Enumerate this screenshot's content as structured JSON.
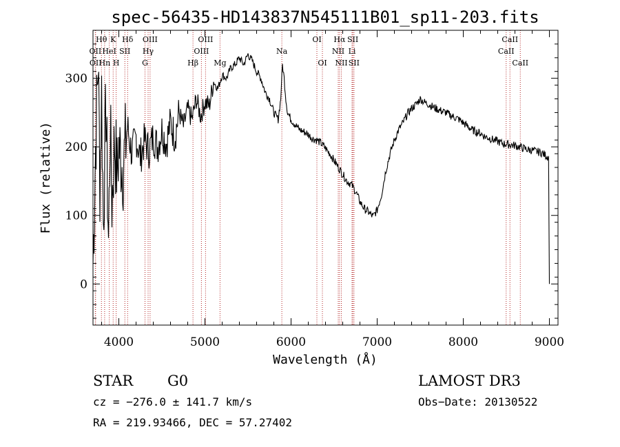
{
  "chart_data": {
    "type": "line",
    "title": "spec-56435-HD143837N545111B01_sp11-203.fits",
    "xlabel": "Wavelength (Å)",
    "ylabel": "Flux (relative)",
    "xlim": [
      3700,
      9100
    ],
    "ylim": [
      -60,
      370
    ],
    "xticks": [
      4000,
      5000,
      6000,
      7000,
      8000,
      9000
    ],
    "yticks": [
      0,
      100,
      200,
      300
    ],
    "series": [
      {
        "name": "Flux",
        "x": [
          3700,
          3730,
          3760,
          3780,
          3800,
          3820,
          3850,
          3880,
          3900,
          3920,
          3950,
          3980,
          4000,
          4050,
          4100,
          4150,
          4200,
          4250,
          4300,
          4350,
          4400,
          4450,
          4500,
          4550,
          4600,
          4650,
          4700,
          4750,
          4800,
          4850,
          4900,
          4950,
          5000,
          5050,
          5100,
          5150,
          5200,
          5250,
          5300,
          5350,
          5400,
          5450,
          5500,
          5550,
          5600,
          5650,
          5700,
          5750,
          5800,
          5850,
          5880,
          5900,
          5920,
          5940,
          5960,
          5980,
          6000,
          6050,
          6100,
          6150,
          6200,
          6250,
          6300,
          6350,
          6400,
          6450,
          6500,
          6550,
          6600,
          6650,
          6700,
          6750,
          6800,
          6850,
          6900,
          6950,
          7000,
          7050,
          7100,
          7150,
          7200,
          7250,
          7300,
          7350,
          7400,
          7450,
          7500,
          7550,
          7600,
          7650,
          7700,
          7750,
          7800,
          7850,
          7900,
          7950,
          8000,
          8050,
          8100,
          8150,
          8200,
          8250,
          8300,
          8350,
          8400,
          8450,
          8500,
          8550,
          8600,
          8650,
          8700,
          8750,
          8800,
          8850,
          8900,
          8950,
          8990,
          9000
        ],
        "y": [
          30,
          200,
          330,
          150,
          280,
          90,
          260,
          60,
          230,
          120,
          210,
          160,
          200,
          170,
          230,
          190,
          215,
          185,
          210,
          195,
          215,
          200,
          225,
          205,
          235,
          215,
          250,
          230,
          255,
          240,
          270,
          245,
          265,
          260,
          295,
          285,
          305,
          300,
          315,
          320,
          330,
          320,
          335,
          325,
          310,
          300,
          280,
          270,
          250,
          240,
          270,
          320,
          300,
          270,
          250,
          245,
          240,
          232,
          225,
          222,
          218,
          212,
          210,
          205,
          198,
          190,
          180,
          170,
          160,
          150,
          145,
          135,
          120,
          110,
          105,
          98,
          108,
          130,
          165,
          190,
          210,
          225,
          235,
          248,
          256,
          262,
          270,
          265,
          262,
          258,
          255,
          252,
          250,
          246,
          243,
          240,
          235,
          230,
          225,
          222,
          220,
          215,
          213,
          210,
          208,
          205,
          204,
          203,
          202,
          200,
          198,
          196,
          195,
          193,
          192,
          188,
          185,
          0
        ]
      }
    ],
    "line_markers": [
      {
        "label": "Hθ",
        "wavelength": 3798,
        "row": 1
      },
      {
        "label": "OII",
        "wavelength": 3727,
        "row": 2
      },
      {
        "label": "OII",
        "wavelength": 3730,
        "row": 3
      },
      {
        "label": "K",
        "wavelength": 3934,
        "row": 1
      },
      {
        "label": "HeI",
        "wavelength": 3889,
        "row": 2
      },
      {
        "label": "Hn",
        "wavelength": 3835,
        "row": 3
      },
      {
        "label": "Hδ",
        "wavelength": 4102,
        "row": 1
      },
      {
        "label": "SII",
        "wavelength": 4070,
        "row": 2
      },
      {
        "label": "H",
        "wavelength": 3969,
        "row": 3
      },
      {
        "label": "OIII",
        "wavelength": 4363,
        "row": 1
      },
      {
        "label": "Hγ",
        "wavelength": 4340,
        "row": 2
      },
      {
        "label": "G",
        "wavelength": 4304,
        "row": 3
      },
      {
        "label": "OIII",
        "wavelength": 5007,
        "row": 1
      },
      {
        "label": "OIII",
        "wavelength": 4959,
        "row": 2
      },
      {
        "label": "Hβ",
        "wavelength": 4861,
        "row": 3
      },
      {
        "label": "Mg",
        "wavelength": 5175,
        "row": 3
      },
      {
        "label": "Na",
        "wavelength": 5893,
        "row": 2
      },
      {
        "label": "OI",
        "wavelength": 6300,
        "row": 1
      },
      {
        "label": "OI",
        "wavelength": 6364,
        "row": 3
      },
      {
        "label": "Hα",
        "wavelength": 6563,
        "row": 1
      },
      {
        "label": "NII",
        "wavelength": 6548,
        "row": 2
      },
      {
        "label": "NII",
        "wavelength": 6584,
        "row": 3
      },
      {
        "label": "SII",
        "wavelength": 6717,
        "row": 1
      },
      {
        "label": "Li",
        "wavelength": 6708,
        "row": 2
      },
      {
        "label": "SII",
        "wavelength": 6731,
        "row": 3
      },
      {
        "label": "CaII",
        "wavelength": 8542,
        "row": 1
      },
      {
        "label": "CaII",
        "wavelength": 8498,
        "row": 2
      },
      {
        "label": "CaII",
        "wavelength": 8662,
        "row": 3
      }
    ],
    "marker_color": "#b22222"
  },
  "info": {
    "object_type": "STAR",
    "subclass": "G0",
    "survey": "LAMOST DR3",
    "cz": "cz = −276.0 ± 141.7 km/s",
    "obs_date": "Obs−Date: 20130522",
    "coords": "RA = 219.93466, DEC =  57.27402"
  }
}
